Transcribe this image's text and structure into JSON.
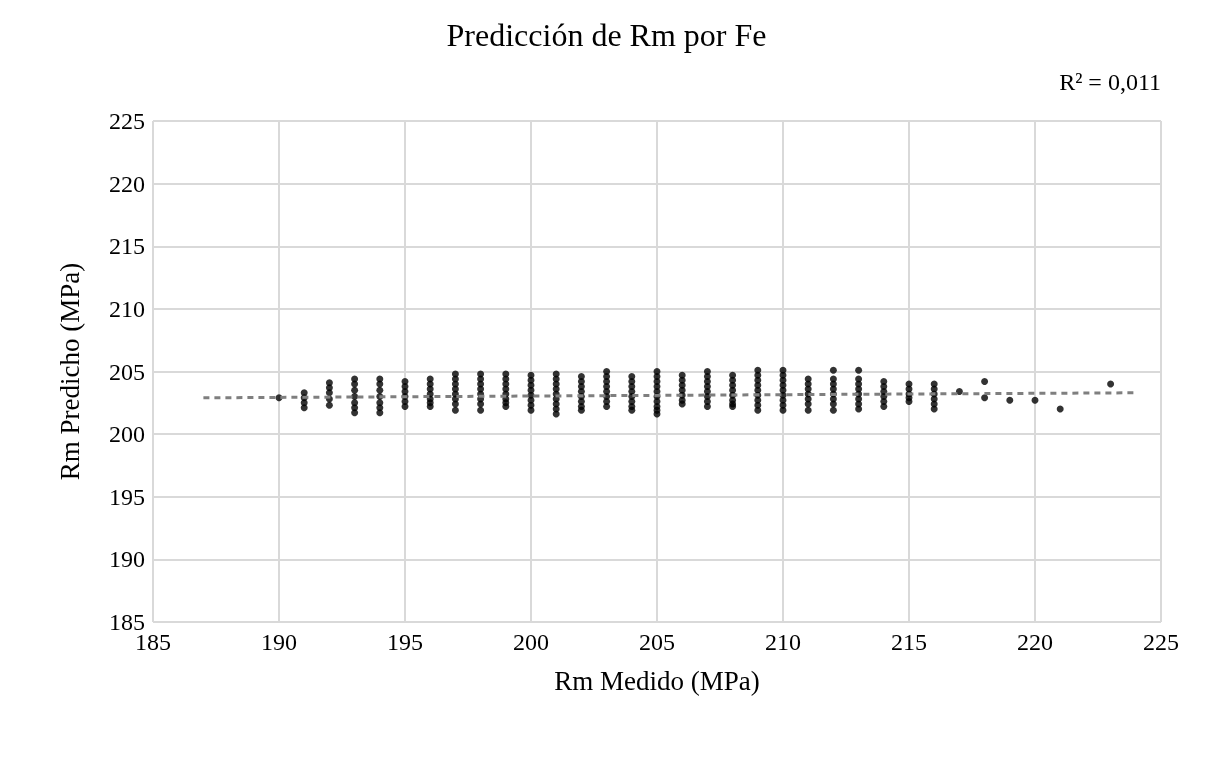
{
  "chart_data": {
    "type": "scatter",
    "title": "Predicción de Rm por Fe",
    "xlabel": "Rm Medido (MPa)",
    "ylabel": "Rm Predicho (MPa)",
    "annotations": [
      "R² = 0,011"
    ],
    "xlim": [
      185,
      225
    ],
    "xticks": [
      185,
      190,
      195,
      200,
      205,
      210,
      215,
      220,
      225
    ],
    "ylim": [
      185,
      225
    ],
    "yticks": [
      185,
      190,
      195,
      200,
      205,
      210,
      215,
      220,
      225
    ],
    "grid": true,
    "series": [
      {
        "marker": "circle",
        "color": "#000000",
        "x": [
          190,
          191,
          191,
          191,
          191,
          192,
          192,
          192,
          192,
          192,
          193,
          193,
          193,
          193,
          193,
          193,
          193,
          194,
          194,
          194,
          194,
          194,
          194,
          194,
          195,
          195,
          195,
          195,
          195,
          195,
          196,
          196,
          196,
          196,
          196,
          196,
          196,
          197,
          197,
          197,
          197,
          197,
          197,
          197,
          197,
          198,
          198,
          198,
          198,
          198,
          198,
          198,
          198,
          199,
          199,
          199,
          199,
          199,
          199,
          199,
          199,
          200,
          200,
          200,
          200,
          200,
          200,
          200,
          200,
          201,
          201,
          201,
          201,
          201,
          201,
          201,
          201,
          201,
          202,
          202,
          202,
          202,
          202,
          202,
          202,
          202,
          203,
          203,
          203,
          203,
          203,
          203,
          203,
          203,
          204,
          204,
          204,
          204,
          204,
          204,
          204,
          204,
          205,
          205,
          205,
          205,
          205,
          205,
          205,
          205,
          205,
          205,
          206,
          206,
          206,
          206,
          206,
          206,
          206,
          207,
          207,
          207,
          207,
          207,
          207,
          207,
          207,
          208,
          208,
          208,
          208,
          208,
          208,
          208,
          208,
          209,
          209,
          209,
          209,
          209,
          209,
          209,
          209,
          209,
          210,
          210,
          210,
          210,
          210,
          210,
          210,
          210,
          210,
          211,
          211,
          211,
          211,
          211,
          211,
          211,
          212,
          212,
          212,
          212,
          212,
          212,
          212,
          212,
          213,
          213,
          213,
          213,
          213,
          213,
          213,
          213,
          214,
          214,
          214,
          214,
          214,
          214,
          215,
          215,
          215,
          215,
          215,
          216,
          216,
          216,
          216,
          216,
          216,
          217,
          218,
          218,
          219,
          220,
          221,
          223
        ],
        "values": [
          202.9,
          203.3,
          202.9,
          202.5,
          202.1,
          204.1,
          203.7,
          203.3,
          202.8,
          202.3,
          204.4,
          204.0,
          203.5,
          203.0,
          202.5,
          202.1,
          201.7,
          204.4,
          204.0,
          203.5,
          203.0,
          202.5,
          202.1,
          201.7,
          204.2,
          203.8,
          203.4,
          203.0,
          202.6,
          202.2,
          204.4,
          204.0,
          203.6,
          203.2,
          202.8,
          202.5,
          202.2,
          204.8,
          204.4,
          204.0,
          203.6,
          203.2,
          202.8,
          202.4,
          201.9,
          204.8,
          204.4,
          204.0,
          203.6,
          203.2,
          202.8,
          202.4,
          201.9,
          204.8,
          204.4,
          204.0,
          203.6,
          203.2,
          202.8,
          202.5,
          202.2,
          204.7,
          204.3,
          203.9,
          203.5,
          203.1,
          202.7,
          202.3,
          201.9,
          204.8,
          204.4,
          204.0,
          203.6,
          203.2,
          202.8,
          202.4,
          202.0,
          201.6,
          204.6,
          204.2,
          203.8,
          203.4,
          203.0,
          202.6,
          202.2,
          201.9,
          205.0,
          204.6,
          204.2,
          203.8,
          203.4,
          203.0,
          202.6,
          202.2,
          204.6,
          204.2,
          203.8,
          203.4,
          203.0,
          202.6,
          202.2,
          201.9,
          205.0,
          204.6,
          204.2,
          203.8,
          203.4,
          203.0,
          202.6,
          202.2,
          201.9,
          201.6,
          204.7,
          204.3,
          203.9,
          203.5,
          203.1,
          202.7,
          202.4,
          205.0,
          204.6,
          204.2,
          203.8,
          203.4,
          203.0,
          202.6,
          202.2,
          204.7,
          204.3,
          203.9,
          203.5,
          203.1,
          202.7,
          202.4,
          202.2,
          205.1,
          204.7,
          204.3,
          203.9,
          203.5,
          203.1,
          202.7,
          202.3,
          201.9,
          205.1,
          204.7,
          204.3,
          203.9,
          203.5,
          203.1,
          202.7,
          202.3,
          201.9,
          204.4,
          204.0,
          203.6,
          203.2,
          202.8,
          202.4,
          201.9,
          205.1,
          204.4,
          204.0,
          203.6,
          203.2,
          202.8,
          202.4,
          201.9,
          205.1,
          204.4,
          204.0,
          203.6,
          203.2,
          202.8,
          202.4,
          202.0,
          204.2,
          203.8,
          203.4,
          203.0,
          202.6,
          202.2,
          204.0,
          203.6,
          203.2,
          202.9,
          202.6,
          204.0,
          203.6,
          203.2,
          202.8,
          202.4,
          202.0,
          203.4,
          204.2,
          202.9,
          202.7,
          202.7,
          202.0,
          204.0
        ]
      },
      {
        "type": "line",
        "line_style": "dashed",
        "marker": "none",
        "color": "#7f7f7f",
        "x": [
          187,
          224
        ],
        "values": [
          202.9,
          203.3
        ]
      }
    ]
  }
}
